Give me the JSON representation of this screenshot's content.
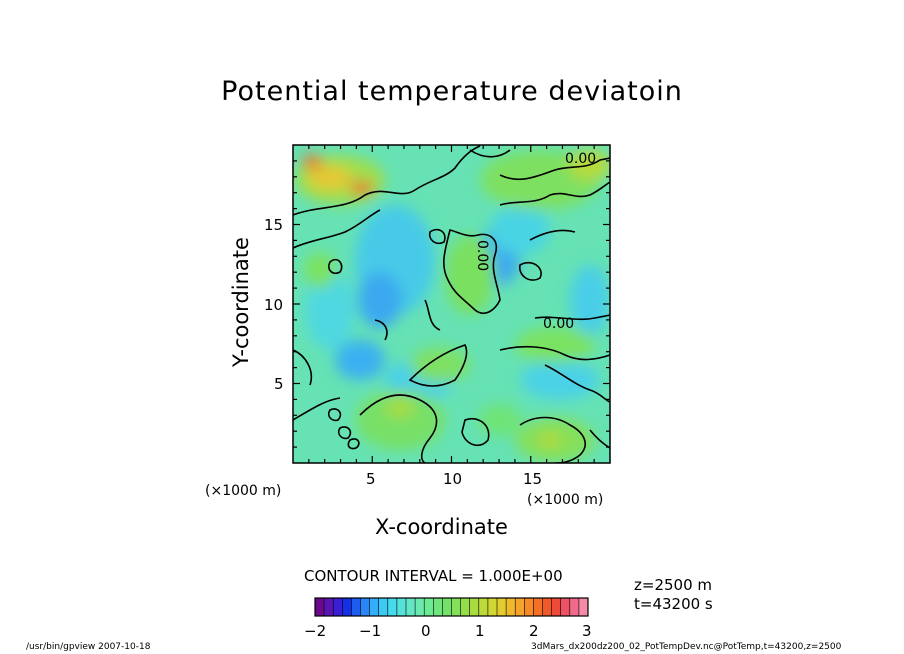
{
  "chart_data": {
    "type": "heatmap",
    "title": "Potential temperature deviatoin",
    "xlabel": "X-coordinate",
    "ylabel": "Y-coordinate",
    "x_unit": "(×1000 m)",
    "y_unit": "(×1000 m)",
    "xlim": [
      0,
      20
    ],
    "ylim": [
      0,
      20
    ],
    "x_ticks": [
      5,
      10,
      15
    ],
    "y_ticks": [
      5,
      10,
      15
    ],
    "contour_labels": [
      "0.00",
      "0.00",
      "0.00"
    ],
    "contour_interval": "CONTOUR INTERVAL = 1.000E+00",
    "colorbar": {
      "min": -2,
      "max": 3,
      "ticks": [
        "−2",
        "−1",
        "0",
        "1",
        "2",
        "3"
      ],
      "colors": [
        "#6a0a8a",
        "#5a14b4",
        "#3a1ed2",
        "#1430e6",
        "#1c5cf0",
        "#2a86f6",
        "#34aef8",
        "#3ccaf4",
        "#46daea",
        "#56e2da",
        "#62e6c6",
        "#6aeaae",
        "#6cea94",
        "#6ee67c",
        "#74e268",
        "#82e05a",
        "#94de4c",
        "#a8dc40",
        "#bcda38",
        "#d0d634",
        "#e2cc30",
        "#eeba2c",
        "#f4a42a",
        "#f68a28",
        "#f47026",
        "#f05a2a",
        "#ee4a3a",
        "#ee5064",
        "#f06a8a",
        "#f48aa6"
      ]
    }
  },
  "info": {
    "z": "z=2500  m",
    "t": "t=43200  s"
  },
  "footer": {
    "left": "/usr/bin/gpview   2007-10-18",
    "right": "3dMars_dx200dz200_02_PotTempDev.nc@PotTemp,t=43200,z=2500"
  }
}
